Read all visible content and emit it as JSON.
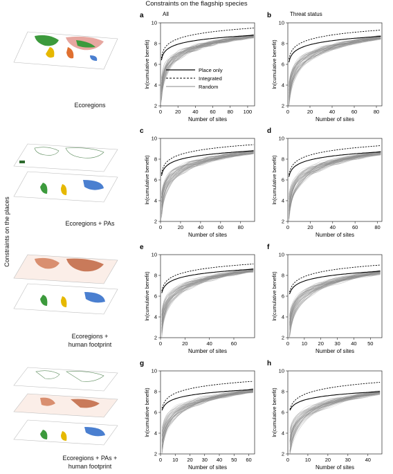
{
  "figure": {
    "title": "Constraints on the flagship species",
    "side_label": "Constraints on the places",
    "column_labels": [
      "All",
      "Threat status"
    ],
    "row_labels": [
      [
        "Ecoregions"
      ],
      [
        "Ecoregions + PAs"
      ],
      [
        "Ecoregions +",
        "human footprint"
      ],
      [
        "Ecoregions + PAs +",
        "human footprint"
      ]
    ]
  },
  "colors": {
    "random_line": "#8a8a8a",
    "place_line": "#000000",
    "integrated_line": "#000000",
    "map_ocean": "#ffffff",
    "map_land_green": "#3c9a3c",
    "map_land_pink": "#e7a7a0",
    "map_land_blue": "#4a7fd0",
    "map_footprint": "#d98f70"
  },
  "chart_data": [
    {
      "type": "line",
      "panel_letter": "a",
      "title": "All",
      "xlabel": "Number of sites",
      "ylabel": "ln(cumulative benefit)",
      "xlim": [
        0,
        108
      ],
      "ylim": [
        2,
        10
      ],
      "xticks": [
        0,
        20,
        40,
        60,
        80,
        100
      ],
      "yticks": [
        2,
        4,
        6,
        8,
        10
      ],
      "legend": {
        "placement": "center-right",
        "entries": [
          "Place only",
          "Integrated",
          "Random"
        ]
      },
      "series": [
        {
          "name": "Place only",
          "style": "solid",
          "start_y": 6.4,
          "end_y": 8.8
        },
        {
          "name": "Integrated",
          "style": "dashed",
          "start_y": 6.6,
          "end_y": 9.5
        },
        {
          "name": "Random",
          "style": "thin",
          "start_y": 3.5,
          "end_y": 8.7,
          "count": 60
        }
      ]
    },
    {
      "type": "line",
      "panel_letter": "b",
      "title": "Threat status",
      "xlabel": "Number of sites",
      "ylabel": "ln(cumulative benefit)",
      "xlim": [
        0,
        85
      ],
      "ylim": [
        2,
        10
      ],
      "xticks": [
        0,
        20,
        40,
        60,
        80
      ],
      "yticks": [
        2,
        4,
        6,
        8,
        10
      ],
      "series": [
        {
          "name": "Place only",
          "style": "solid",
          "start_y": 6.2,
          "end_y": 8.7
        },
        {
          "name": "Integrated",
          "style": "dashed",
          "start_y": 6.5,
          "end_y": 9.3
        },
        {
          "name": "Random",
          "style": "thin",
          "start_y": 3.0,
          "end_y": 8.6,
          "count": 60
        }
      ]
    },
    {
      "type": "line",
      "panel_letter": "c",
      "xlabel": "Number of sites",
      "ylabel": "ln(cumulative benefit)",
      "xlim": [
        0,
        94
      ],
      "ylim": [
        2,
        10
      ],
      "xticks": [
        0,
        20,
        40,
        60,
        80
      ],
      "yticks": [
        2,
        4,
        6,
        8,
        10
      ],
      "series": [
        {
          "name": "Place only",
          "style": "solid",
          "start_y": 6.4,
          "end_y": 8.8
        },
        {
          "name": "Integrated",
          "style": "dashed",
          "start_y": 6.6,
          "end_y": 9.4
        },
        {
          "name": "Random",
          "style": "thin",
          "start_y": 3.5,
          "end_y": 8.7,
          "count": 60
        }
      ]
    },
    {
      "type": "line",
      "panel_letter": "d",
      "xlabel": "Number of sites",
      "ylabel": "ln(cumulative benefit)",
      "xlim": [
        0,
        84
      ],
      "ylim": [
        2,
        10
      ],
      "xticks": [
        0,
        20,
        40,
        60,
        80
      ],
      "yticks": [
        2,
        4,
        6,
        8,
        10
      ],
      "series": [
        {
          "name": "Place only",
          "style": "solid",
          "start_y": 6.3,
          "end_y": 8.7
        },
        {
          "name": "Integrated",
          "style": "dashed",
          "start_y": 6.5,
          "end_y": 9.3
        },
        {
          "name": "Random",
          "style": "thin",
          "start_y": 3.2,
          "end_y": 8.6,
          "count": 60
        }
      ]
    },
    {
      "type": "line",
      "panel_letter": "e",
      "xlabel": "Number of sites",
      "ylabel": "ln(cumulative benefit)",
      "xlim": [
        0,
        77
      ],
      "ylim": [
        2,
        10
      ],
      "xticks": [
        0,
        20,
        40,
        60
      ],
      "yticks": [
        2,
        4,
        6,
        8,
        10
      ],
      "series": [
        {
          "name": "Place only",
          "style": "solid",
          "start_y": 6.3,
          "end_y": 8.6
        },
        {
          "name": "Integrated",
          "style": "dashed",
          "start_y": 6.5,
          "end_y": 9.1
        },
        {
          "name": "Random",
          "style": "thin",
          "start_y": 3.3,
          "end_y": 8.5,
          "count": 60
        }
      ]
    },
    {
      "type": "line",
      "panel_letter": "f",
      "xlabel": "Number of sites",
      "ylabel": "ln(cumulative benefit)",
      "xlim": [
        0,
        57
      ],
      "ylim": [
        2,
        10
      ],
      "xticks": [
        0,
        10,
        20,
        30,
        40,
        50
      ],
      "yticks": [
        2,
        4,
        6,
        8,
        10
      ],
      "series": [
        {
          "name": "Place only",
          "style": "solid",
          "start_y": 6.2,
          "end_y": 8.4
        },
        {
          "name": "Integrated",
          "style": "dashed",
          "start_y": 6.4,
          "end_y": 9.0
        },
        {
          "name": "Random",
          "style": "thin",
          "start_y": 3.0,
          "end_y": 8.3,
          "count": 60
        }
      ]
    },
    {
      "type": "line",
      "panel_letter": "g",
      "xlabel": "Number of sites",
      "ylabel": "ln(cumulative benefit)",
      "xlim": [
        0,
        64
      ],
      "ylim": [
        2,
        10
      ],
      "xticks": [
        0,
        10,
        20,
        30,
        40,
        50,
        60
      ],
      "yticks": [
        2,
        4,
        6,
        8,
        10
      ],
      "series": [
        {
          "name": "Place only",
          "style": "solid",
          "start_y": 6.2,
          "end_y": 8.2
        },
        {
          "name": "Integrated",
          "style": "dashed",
          "start_y": 6.4,
          "end_y": 9.0
        },
        {
          "name": "Random",
          "style": "thin",
          "start_y": 3.2,
          "end_y": 8.1,
          "count": 60
        }
      ]
    },
    {
      "type": "line",
      "panel_letter": "h",
      "xlabel": "Number of sites",
      "ylabel": "ln(cumulative benefit)",
      "xlim": [
        0,
        47
      ],
      "ylim": [
        2,
        10
      ],
      "xticks": [
        0,
        10,
        20,
        30,
        40
      ],
      "yticks": [
        2,
        4,
        6,
        8,
        10
      ],
      "series": [
        {
          "name": "Place only",
          "style": "solid",
          "start_y": 6.2,
          "end_y": 8.0
        },
        {
          "name": "Integrated",
          "style": "dashed",
          "start_y": 6.3,
          "end_y": 8.9
        },
        {
          "name": "Random",
          "style": "thin",
          "start_y": 3.0,
          "end_y": 7.9,
          "count": 60
        }
      ]
    }
  ]
}
